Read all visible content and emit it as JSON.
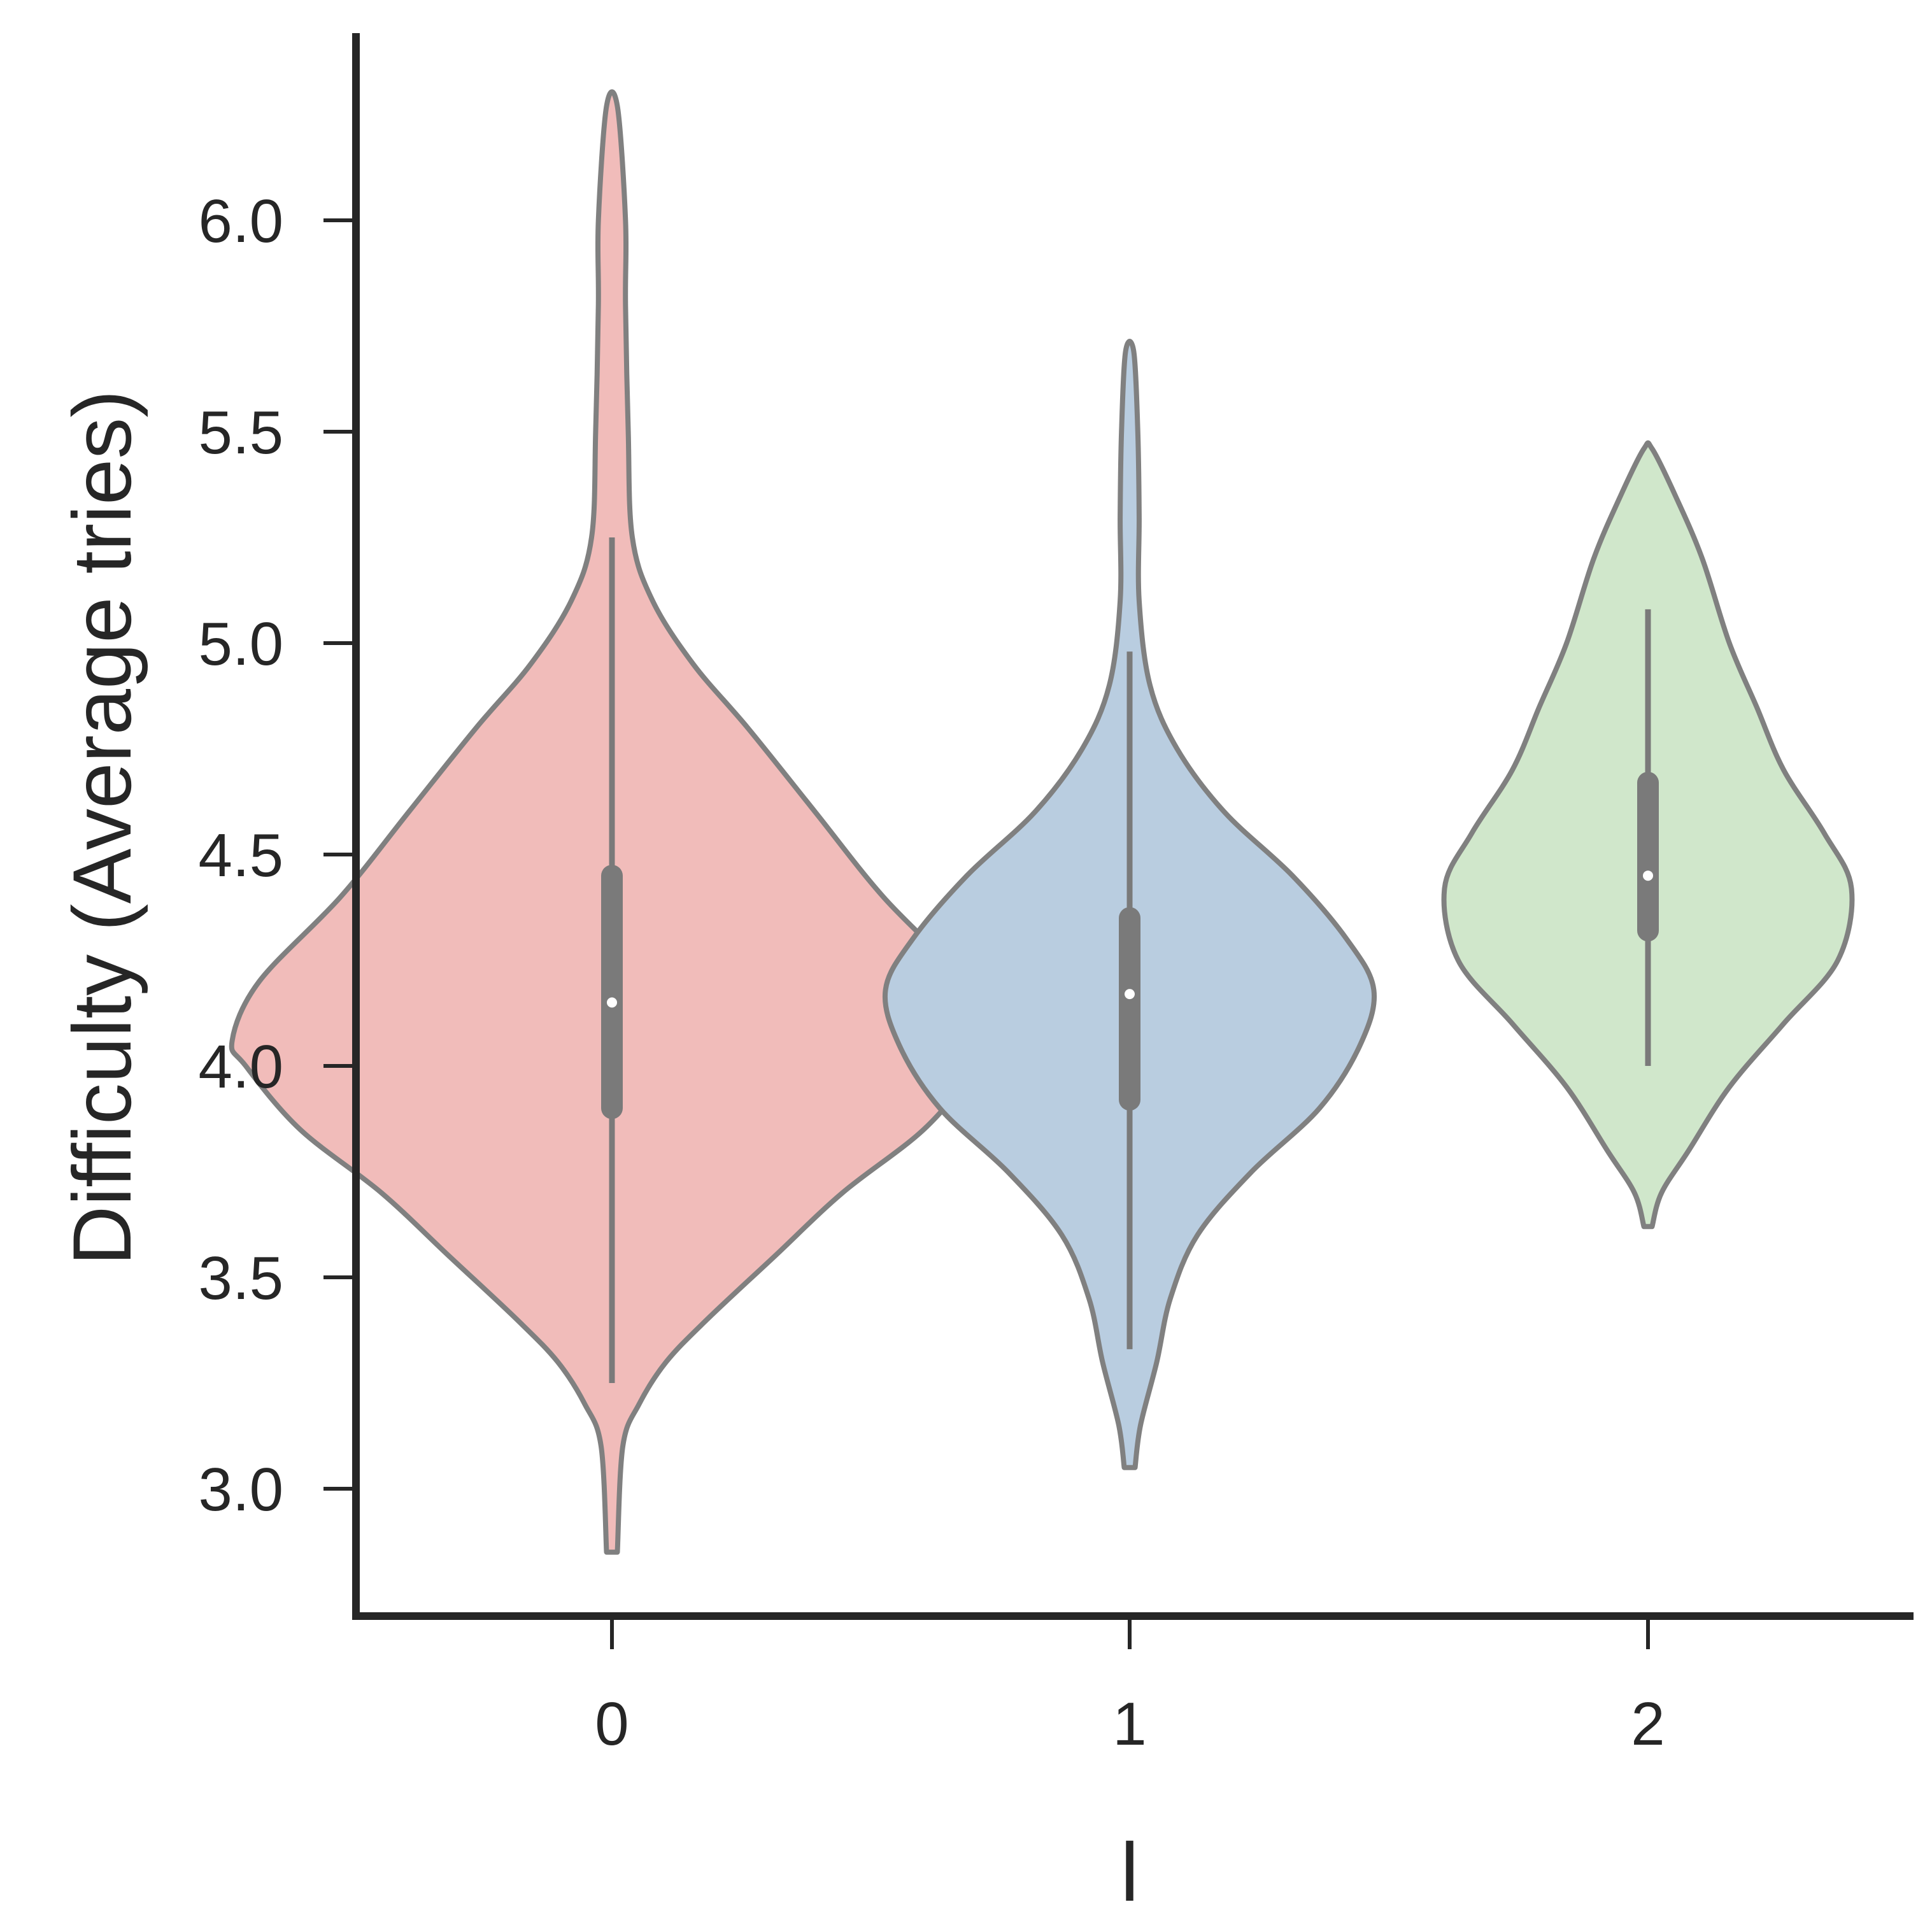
{
  "chart_data": {
    "type": "violin",
    "xlabel": "l",
    "ylabel": "Difficulty (Average tries)",
    "categories": [
      "0",
      "1",
      "2"
    ],
    "ylim": [
      2.7,
      6.5
    ],
    "yticks": [
      3.0,
      3.5,
      4.0,
      4.5,
      5.0,
      5.5,
      6.0
    ],
    "ytick_labels": [
      "3.0",
      "3.5",
      "4.0",
      "4.5",
      "5.0",
      "5.5",
      "6.0"
    ],
    "grid": false,
    "violins": [
      {
        "category": "0",
        "color": "#f1bcba",
        "median": 4.15,
        "q1": 3.9,
        "q3": 4.45,
        "whisker_low": 3.25,
        "whisker_high": 5.25,
        "min": 2.85,
        "max": 6.27,
        "profile": [
          [
            2.85,
            0.004
          ],
          [
            3.1,
            0.008
          ],
          [
            3.2,
            0.02
          ],
          [
            3.3,
            0.04
          ],
          [
            3.4,
            0.07
          ],
          [
            3.55,
            0.12
          ],
          [
            3.7,
            0.17
          ],
          [
            3.85,
            0.23
          ],
          [
            4.0,
            0.27
          ],
          [
            4.06,
            0.28
          ],
          [
            4.2,
            0.26
          ],
          [
            4.4,
            0.2
          ],
          [
            4.6,
            0.15
          ],
          [
            4.8,
            0.1
          ],
          [
            4.95,
            0.06
          ],
          [
            5.1,
            0.03
          ],
          [
            5.25,
            0.015
          ],
          [
            5.5,
            0.012
          ],
          [
            5.8,
            0.01
          ],
          [
            6.0,
            0.01
          ],
          [
            6.27,
            0.004
          ]
        ]
      },
      {
        "category": "1",
        "color": "#b9cde0",
        "median": 4.17,
        "q1": 3.92,
        "q3": 4.35,
        "whisker_low": 3.33,
        "whisker_high": 4.98,
        "min": 3.05,
        "max": 5.69,
        "profile": [
          [
            3.05,
            0.004
          ],
          [
            3.15,
            0.008
          ],
          [
            3.3,
            0.02
          ],
          [
            3.45,
            0.03
          ],
          [
            3.6,
            0.05
          ],
          [
            3.75,
            0.09
          ],
          [
            3.9,
            0.14
          ],
          [
            4.05,
            0.17
          ],
          [
            4.18,
            0.18
          ],
          [
            4.3,
            0.16
          ],
          [
            4.45,
            0.12
          ],
          [
            4.6,
            0.07
          ],
          [
            4.75,
            0.035
          ],
          [
            4.9,
            0.015
          ],
          [
            5.1,
            0.007
          ],
          [
            5.3,
            0.007
          ],
          [
            5.5,
            0.006
          ],
          [
            5.69,
            0.003
          ]
        ]
      },
      {
        "category": "2",
        "color": "#d0e7cb",
        "median": 4.45,
        "q1": 4.32,
        "q3": 4.67,
        "whisker_low": 4.0,
        "whisker_high": 5.08,
        "min": 3.62,
        "max": 5.46,
        "profile": [
          [
            3.62,
            0.003
          ],
          [
            3.7,
            0.01
          ],
          [
            3.8,
            0.03
          ],
          [
            3.95,
            0.06
          ],
          [
            4.1,
            0.1
          ],
          [
            4.25,
            0.14
          ],
          [
            4.42,
            0.15
          ],
          [
            4.55,
            0.13
          ],
          [
            4.7,
            0.1
          ],
          [
            4.85,
            0.08
          ],
          [
            5.0,
            0.06
          ],
          [
            5.2,
            0.04
          ],
          [
            5.35,
            0.02
          ],
          [
            5.46,
            0.003
          ]
        ]
      }
    ]
  },
  "colors": {
    "axis": "#262626",
    "violin_edge": "#808080",
    "box": "#7a7a7a",
    "median_dot": "#ffffff"
  }
}
